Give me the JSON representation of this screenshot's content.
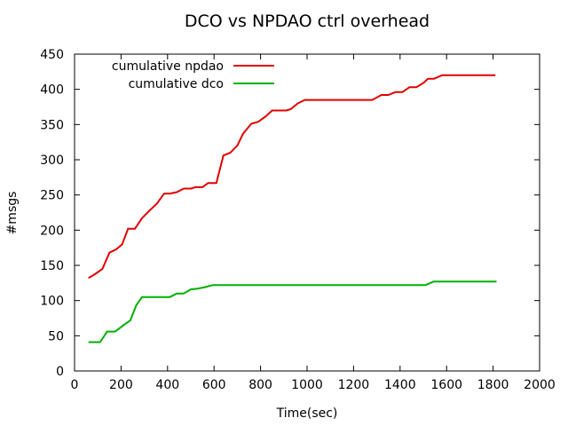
{
  "chart_data": {
    "type": "line",
    "title": "DCO vs NPDAO ctrl overhead",
    "xlabel": "Time(sec)",
    "ylabel": "#msgs",
    "xlim": [
      0,
      2000
    ],
    "ylim": [
      0,
      450
    ],
    "xticks": [
      0,
      200,
      400,
      600,
      800,
      1000,
      1200,
      1400,
      1600,
      1800,
      2000
    ],
    "yticks": [
      0,
      50,
      100,
      150,
      200,
      250,
      300,
      350,
      400,
      450
    ],
    "grid": false,
    "legend_position": "top-left",
    "series": [
      {
        "name": "cumulative npdao",
        "color": "#e00000",
        "points": [
          [
            60,
            132
          ],
          [
            90,
            138
          ],
          [
            120,
            145
          ],
          [
            150,
            168
          ],
          [
            180,
            173
          ],
          [
            205,
            180
          ],
          [
            230,
            202
          ],
          [
            260,
            202
          ],
          [
            290,
            217
          ],
          [
            320,
            227
          ],
          [
            355,
            238
          ],
          [
            385,
            252
          ],
          [
            410,
            252
          ],
          [
            440,
            254
          ],
          [
            470,
            259
          ],
          [
            500,
            259
          ],
          [
            520,
            261
          ],
          [
            550,
            261
          ],
          [
            575,
            267
          ],
          [
            610,
            267
          ],
          [
            640,
            306
          ],
          [
            670,
            310
          ],
          [
            700,
            320
          ],
          [
            725,
            337
          ],
          [
            760,
            351
          ],
          [
            790,
            354
          ],
          [
            820,
            361
          ],
          [
            850,
            370
          ],
          [
            875,
            370
          ],
          [
            910,
            370
          ],
          [
            930,
            372
          ],
          [
            960,
            380
          ],
          [
            990,
            385
          ],
          [
            1020,
            385
          ],
          [
            1050,
            385
          ],
          [
            1100,
            385
          ],
          [
            1150,
            385
          ],
          [
            1200,
            385
          ],
          [
            1280,
            385
          ],
          [
            1320,
            392
          ],
          [
            1350,
            392
          ],
          [
            1380,
            396
          ],
          [
            1410,
            396
          ],
          [
            1440,
            403
          ],
          [
            1470,
            403
          ],
          [
            1500,
            409
          ],
          [
            1520,
            415
          ],
          [
            1545,
            415
          ],
          [
            1580,
            420
          ],
          [
            1640,
            420
          ],
          [
            1700,
            420
          ],
          [
            1760,
            420
          ],
          [
            1810,
            420
          ]
        ]
      },
      {
        "name": "cumulative dco",
        "color": "#00b000",
        "points": [
          [
            60,
            41
          ],
          [
            110,
            41
          ],
          [
            140,
            56
          ],
          [
            175,
            56
          ],
          [
            215,
            66
          ],
          [
            240,
            72
          ],
          [
            265,
            93
          ],
          [
            290,
            105
          ],
          [
            320,
            105
          ],
          [
            360,
            105
          ],
          [
            410,
            105
          ],
          [
            440,
            110
          ],
          [
            470,
            110
          ],
          [
            500,
            116
          ],
          [
            530,
            117
          ],
          [
            560,
            119
          ],
          [
            595,
            122
          ],
          [
            650,
            122
          ],
          [
            700,
            122
          ],
          [
            800,
            122
          ],
          [
            900,
            122
          ],
          [
            1000,
            122
          ],
          [
            1100,
            122
          ],
          [
            1200,
            122
          ],
          [
            1300,
            122
          ],
          [
            1400,
            122
          ],
          [
            1480,
            122
          ],
          [
            1510,
            122
          ],
          [
            1545,
            127
          ],
          [
            1600,
            127
          ],
          [
            1700,
            127
          ],
          [
            1815,
            127
          ]
        ]
      }
    ]
  }
}
